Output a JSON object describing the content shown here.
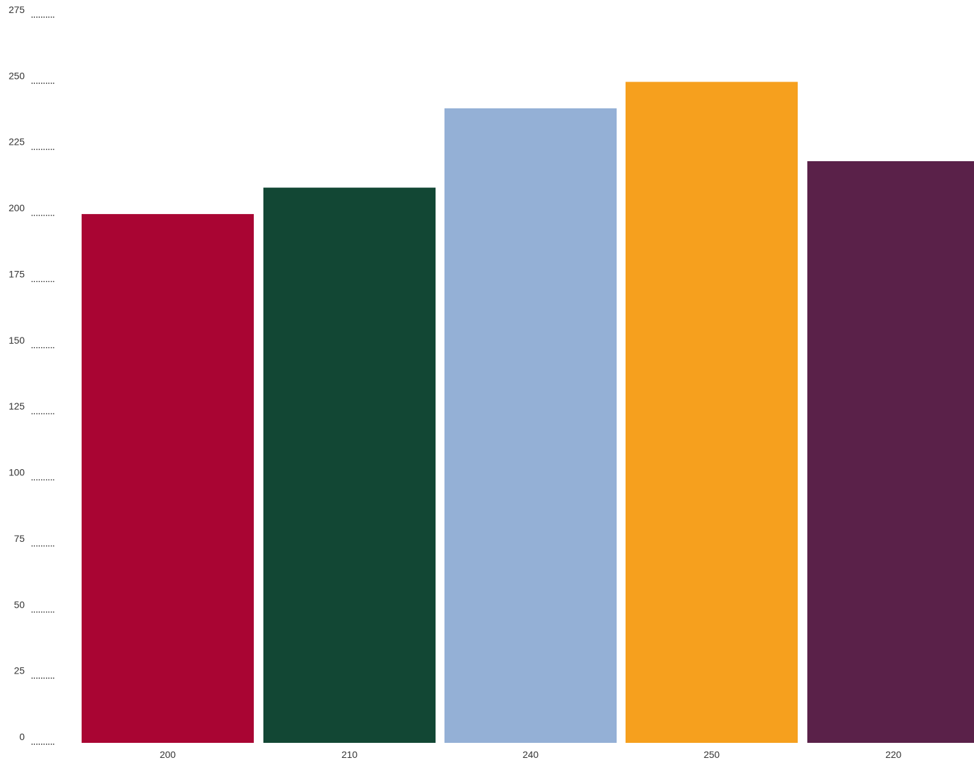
{
  "chart_data": {
    "type": "bar",
    "title": "",
    "xlabel": "",
    "ylabel": "",
    "categories": [
      "200",
      "210",
      "240",
      "250",
      "220"
    ],
    "values": [
      200,
      210,
      240,
      250,
      220
    ],
    "colors": [
      "#a90533",
      "#124734",
      "#94b0d6",
      "#f6a01e",
      "#5a2149"
    ],
    "ylim": [
      0,
      275
    ],
    "yticks": [
      0,
      25,
      50,
      75,
      100,
      125,
      150,
      175,
      200,
      225,
      250,
      275
    ],
    "grid": false,
    "legend": "none"
  }
}
